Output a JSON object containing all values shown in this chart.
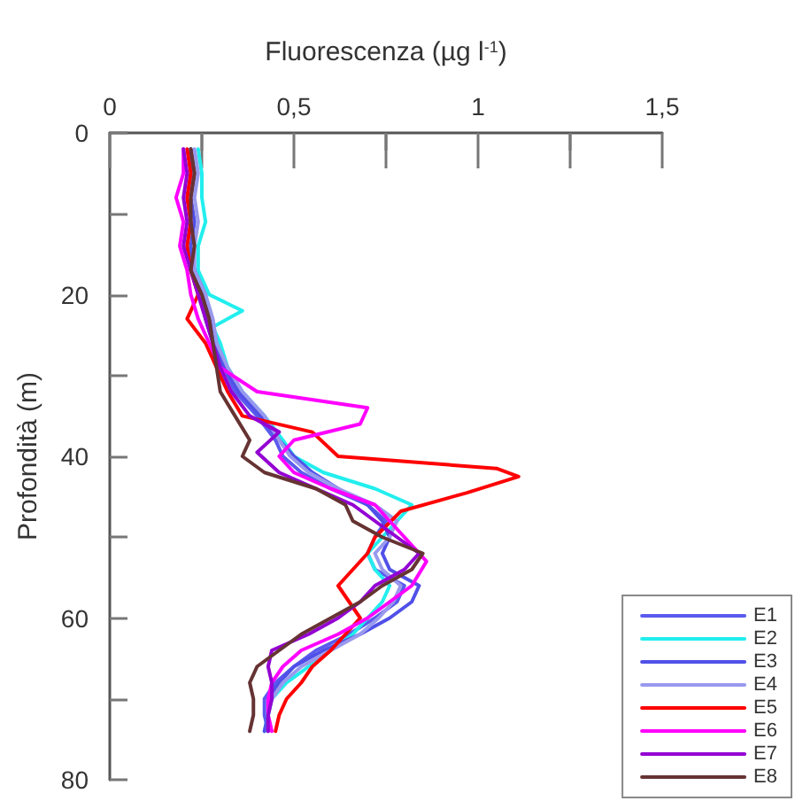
{
  "chart_data": {
    "type": "line",
    "xlabel": "Fluorescenza (µg l$^{-1}$)",
    "ylabel": "Profondità (m)",
    "xlim": [
      0,
      1.5
    ],
    "xticks": [
      0,
      {
        "value": 0.25,
        "label": null
      },
      {
        "value": 0.5,
        "label": "0,5"
      },
      {
        "value": 0.75,
        "label": null
      },
      1,
      {
        "value": 1.25,
        "label": null
      },
      {
        "value": 1.5,
        "label": "1,5"
      }
    ],
    "ylim": [
      80,
      0
    ],
    "yticks": [
      0,
      {
        "value": 10,
        "label": null
      },
      20,
      {
        "value": 30,
        "label": null
      },
      40,
      {
        "value": 50,
        "label": null
      },
      60,
      {
        "value": 70,
        "label": null
      },
      80
    ],
    "grid": false,
    "legend": "bottom right",
    "marker": "none",
    "line_style": "solid",
    "series": [
      {
        "name": "E1",
        "color": "#5a5aee",
        "x": [
          0.22,
          0.22,
          0.21,
          0.22,
          0.21,
          0.23,
          0.25,
          0.26,
          0.28,
          0.31,
          0.34,
          0.4,
          0.45,
          0.47,
          0.52,
          0.6,
          0.7,
          0.75,
          0.72,
          0.7,
          0.72,
          0.8,
          0.78,
          0.72,
          0.65,
          0.56,
          0.5,
          0.45,
          0.42,
          0.42,
          0.43
        ],
        "values": [
          2,
          5,
          8,
          11,
          14,
          17,
          20,
          23,
          26,
          29,
          32,
          35,
          38,
          40,
          42,
          44,
          46,
          48,
          50,
          52,
          54,
          56,
          58,
          60,
          62,
          64,
          66,
          68,
          70,
          72,
          74
        ]
      },
      {
        "name": "E2",
        "color": "#22eeee",
        "x": [
          0.24,
          0.25,
          0.25,
          0.26,
          0.24,
          0.24,
          0.27,
          0.36,
          0.28,
          0.3,
          0.32,
          0.36,
          0.42,
          0.47,
          0.5,
          0.58,
          0.72,
          0.82,
          0.78,
          0.74,
          0.7,
          0.72,
          0.76,
          0.74,
          0.7,
          0.66,
          0.6,
          0.54,
          0.48,
          0.44,
          0.43,
          0.42
        ],
        "values": [
          2,
          5,
          8,
          11,
          14,
          17,
          20,
          22,
          24,
          26,
          29,
          32,
          35,
          38,
          40,
          42,
          44,
          46,
          48,
          50,
          52,
          54,
          56,
          58,
          60,
          62,
          64,
          66,
          68,
          70,
          72,
          74
        ]
      },
      {
        "name": "E3",
        "color": "#5050e8",
        "x": [
          0.22,
          0.23,
          0.22,
          0.23,
          0.22,
          0.23,
          0.26,
          0.27,
          0.29,
          0.31,
          0.35,
          0.41,
          0.46,
          0.5,
          0.55,
          0.62,
          0.7,
          0.74,
          0.76,
          0.74,
          0.76,
          0.84,
          0.82,
          0.76,
          0.68,
          0.58,
          0.5,
          0.46,
          0.43,
          0.43,
          0.42
        ],
        "values": [
          2,
          5,
          8,
          11,
          14,
          17,
          20,
          23,
          26,
          29,
          32,
          35,
          38,
          40,
          42,
          44,
          46,
          48,
          50,
          52,
          54,
          56,
          58,
          60,
          62,
          64,
          66,
          68,
          70,
          72,
          74
        ]
      },
      {
        "name": "E4",
        "color": "#9999ee",
        "x": [
          0.23,
          0.24,
          0.23,
          0.24,
          0.23,
          0.23,
          0.26,
          0.28,
          0.29,
          0.32,
          0.36,
          0.42,
          0.46,
          0.49,
          0.54,
          0.62,
          0.72,
          0.78,
          0.76,
          0.72,
          0.74,
          0.79,
          0.77,
          0.73,
          0.68,
          0.6,
          0.52,
          0.47,
          0.44,
          0.43,
          0.43
        ],
        "values": [
          2,
          5,
          8,
          11,
          14,
          17,
          20,
          23,
          26,
          29,
          32,
          35,
          38,
          40,
          42,
          44,
          46,
          48,
          50,
          52,
          54,
          56,
          58,
          60,
          62,
          64,
          66,
          68,
          70,
          72,
          74
        ]
      },
      {
        "name": "E5",
        "color": "#ff0000",
        "x": [
          0.21,
          0.22,
          0.21,
          0.22,
          0.21,
          0.22,
          0.24,
          0.21,
          0.26,
          0.29,
          0.32,
          0.36,
          0.55,
          0.62,
          1.05,
          1.11,
          0.97,
          0.79,
          0.72,
          0.7,
          0.66,
          0.62,
          0.65,
          0.68,
          0.64,
          0.6,
          0.55,
          0.52,
          0.48,
          0.46,
          0.45
        ],
        "values": [
          2,
          5,
          8,
          11,
          14,
          17,
          20,
          23,
          26,
          29,
          32,
          35,
          37,
          40,
          41.5,
          42.5,
          44.5,
          46.8,
          50,
          52,
          54,
          56,
          58,
          60,
          62,
          64,
          66,
          68,
          70,
          72,
          74
        ]
      },
      {
        "name": "E6",
        "color": "#ff00ff",
        "x": [
          0.2,
          0.2,
          0.18,
          0.2,
          0.19,
          0.21,
          0.22,
          0.24,
          0.27,
          0.3,
          0.4,
          0.7,
          0.68,
          0.5,
          0.46,
          0.5,
          0.6,
          0.72,
          0.76,
          0.8,
          0.86,
          0.82,
          0.76,
          0.7,
          0.62,
          0.52,
          0.47,
          0.44,
          0.43,
          0.43,
          0.44
        ],
        "values": [
          2,
          5,
          8,
          11,
          14,
          17,
          20,
          23,
          26,
          29,
          32,
          34,
          36,
          38,
          40,
          42,
          44,
          46,
          48,
          50,
          53,
          56,
          58,
          60,
          62,
          64,
          66,
          68,
          70,
          72,
          74
        ]
      },
      {
        "name": "E7",
        "color": "#9400d3",
        "x": [
          0.2,
          0.21,
          0.2,
          0.21,
          0.2,
          0.22,
          0.24,
          0.26,
          0.28,
          0.3,
          0.33,
          0.38,
          0.46,
          0.4,
          0.46,
          0.56,
          0.66,
          0.72,
          0.78,
          0.84,
          0.8,
          0.72,
          0.68,
          0.62,
          0.54,
          0.44,
          0.43,
          0.44,
          0.44,
          0.43,
          0.43
        ],
        "values": [
          2,
          5,
          8,
          11,
          14,
          17,
          20,
          23,
          26,
          29,
          32,
          35,
          37,
          39.5,
          42,
          44,
          46,
          48,
          50,
          52,
          54,
          56,
          58,
          60,
          62,
          64,
          66,
          68,
          70,
          72,
          74
        ]
      },
      {
        "name": "E8",
        "color": "#663333",
        "x": [
          0.22,
          0.23,
          0.22,
          0.22,
          0.23,
          0.22,
          0.25,
          0.27,
          0.28,
          0.29,
          0.3,
          0.34,
          0.38,
          0.36,
          0.42,
          0.56,
          0.64,
          0.66,
          0.74,
          0.85,
          0.82,
          0.74,
          0.68,
          0.6,
          0.52,
          0.46,
          0.4,
          0.38,
          0.39,
          0.39,
          0.38
        ],
        "values": [
          2,
          5,
          8,
          11,
          14,
          17,
          20,
          23,
          26,
          29,
          32,
          35,
          38,
          40,
          42,
          44,
          46,
          48,
          50,
          52,
          54,
          56,
          58,
          60,
          62,
          64,
          66,
          68,
          70,
          72,
          74
        ]
      }
    ]
  }
}
